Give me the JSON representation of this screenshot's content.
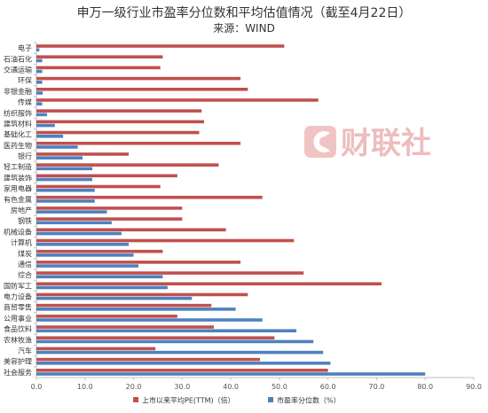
{
  "chart_data": {
    "type": "bar",
    "orientation": "horizontal",
    "title": "申万一级行业市盈率分位数和平均估值情况（截至4月22日）",
    "subtitle": "来源：WIND",
    "categories": [
      "电子",
      "石油石化",
      "交通运输",
      "环保",
      "非银金融",
      "传媒",
      "纺织服饰",
      "建筑材料",
      "基础化工",
      "医药生物",
      "银行",
      "轻工制造",
      "建筑装饰",
      "家用电器",
      "有色金属",
      "房地产",
      "钢铁",
      "机械设备",
      "计算机",
      "煤炭",
      "通信",
      "综合",
      "国防军工",
      "电力设备",
      "商贸零售",
      "公用事业",
      "食品饮料",
      "农林牧渔",
      "汽车",
      "美容护理",
      "社会服务"
    ],
    "series": [
      {
        "name": "上市以来平均PE(TTM)（倍）",
        "color": "#c0504d",
        "values": [
          51,
          26,
          25.5,
          42,
          43.5,
          58,
          34,
          34.5,
          33.5,
          42,
          19,
          37.5,
          29,
          25.5,
          46.5,
          30,
          30,
          39,
          53,
          26,
          42,
          55,
          71,
          43.5,
          36,
          29,
          36.5,
          49,
          24.5,
          46,
          60
        ]
      },
      {
        "name": "市盈率分位数（%）",
        "color": "#4f81bd",
        "values": [
          0.6,
          1.2,
          1.2,
          1.2,
          1.3,
          1.2,
          2.2,
          3.8,
          5.5,
          8.5,
          9.5,
          11.5,
          11.5,
          12,
          12,
          14.5,
          15.5,
          17.5,
          19,
          20,
          21,
          26,
          27,
          32,
          41,
          46.5,
          53.5,
          57,
          59,
          60.5,
          80
        ]
      }
    ],
    "xlim": [
      0,
      90
    ],
    "xticks": [
      0,
      10,
      20,
      30,
      40,
      50,
      60,
      70,
      80,
      90
    ],
    "legend_position": "bottom",
    "grid": false
  },
  "watermark": {
    "text": "财联社"
  }
}
